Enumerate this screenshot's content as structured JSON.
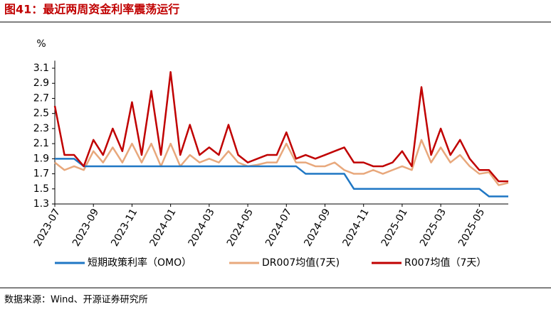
{
  "title": "图41：最近两周资金利率震荡运行",
  "source": "数据来源：Wind、开源证券研究所",
  "chart_data": {
    "type": "line",
    "y_unit": "%",
    "categories": [
      "2023-07",
      null,
      null,
      null,
      "2023-09",
      null,
      null,
      null,
      "2023-11",
      null,
      null,
      null,
      "2024-01",
      null,
      null,
      null,
      "2024-03",
      null,
      null,
      null,
      "2024-05",
      null,
      null,
      null,
      "2024-07",
      null,
      null,
      null,
      "2024-09",
      null,
      null,
      null,
      "2024-11",
      null,
      null,
      null,
      "2025-01",
      null,
      null,
      null,
      "2025-03",
      null,
      null,
      null,
      "2025-05",
      null,
      null,
      null
    ],
    "series": [
      {
        "name": "短期政策利率（OMO）",
        "color": "#1f77c4",
        "values": [
          1.9,
          1.9,
          1.9,
          1.8,
          1.8,
          1.8,
          1.8,
          1.8,
          1.8,
          1.8,
          1.8,
          1.8,
          1.8,
          1.8,
          1.8,
          1.8,
          1.8,
          1.8,
          1.8,
          1.8,
          1.8,
          1.8,
          1.8,
          1.8,
          1.8,
          1.8,
          1.7,
          1.7,
          1.7,
          1.7,
          1.7,
          1.5,
          1.5,
          1.5,
          1.5,
          1.5,
          1.5,
          1.5,
          1.5,
          1.5,
          1.5,
          1.5,
          1.5,
          1.5,
          1.5,
          1.4,
          1.4,
          1.4
        ]
      },
      {
        "name": "DR007均值(7天)",
        "color": "#e8a87c",
        "values": [
          1.85,
          1.75,
          1.8,
          1.75,
          2.0,
          1.85,
          2.05,
          1.85,
          2.1,
          1.85,
          2.1,
          1.8,
          2.1,
          1.8,
          1.95,
          1.85,
          1.9,
          1.85,
          2.0,
          1.85,
          1.8,
          1.82,
          1.85,
          1.85,
          2.1,
          1.85,
          1.85,
          1.8,
          1.8,
          1.85,
          1.75,
          1.7,
          1.7,
          1.75,
          1.7,
          1.75,
          1.8,
          1.75,
          2.15,
          1.85,
          2.05,
          1.85,
          1.95,
          1.8,
          1.7,
          1.72,
          1.55,
          1.58
        ]
      },
      {
        "name": "R007均值（7天）",
        "color": "#c00000",
        "values": [
          2.6,
          1.95,
          1.95,
          1.8,
          2.15,
          1.95,
          2.3,
          2.0,
          2.65,
          1.95,
          2.8,
          1.95,
          3.05,
          1.95,
          2.35,
          1.95,
          2.05,
          1.95,
          2.35,
          1.95,
          1.85,
          1.9,
          1.95,
          1.95,
          2.25,
          1.9,
          1.95,
          1.9,
          1.95,
          2.0,
          2.05,
          1.85,
          1.85,
          1.8,
          1.8,
          1.85,
          2.0,
          1.8,
          2.85,
          1.95,
          2.3,
          1.95,
          2.15,
          1.9,
          1.75,
          1.75,
          1.6,
          1.6
        ]
      }
    ],
    "ylim": [
      1.3,
      3.2
    ],
    "yticks": [
      1.3,
      1.5,
      1.7,
      1.9,
      2.1,
      2.3,
      2.5,
      2.7,
      2.9,
      3.1
    ]
  }
}
